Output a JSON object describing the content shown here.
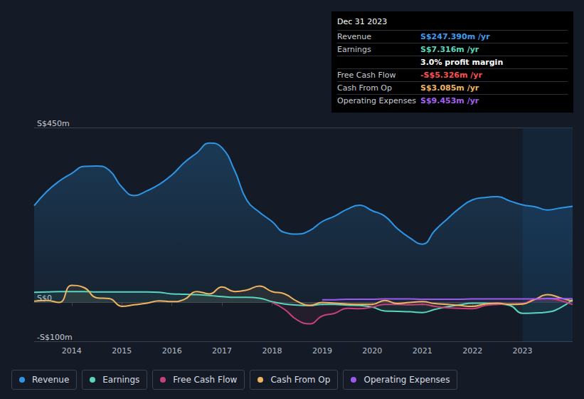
{
  "chart_data": {
    "type": "line",
    "x": [
      2013.25,
      2013.5,
      2013.75,
      2014,
      2014.25,
      2014.5,
      2014.75,
      2015,
      2015.25,
      2015.5,
      2015.75,
      2016,
      2016.25,
      2016.5,
      2016.75,
      2017,
      2017.25,
      2017.5,
      2017.75,
      2018,
      2018.25,
      2018.5,
      2018.75,
      2019,
      2019.25,
      2019.5,
      2019.75,
      2020,
      2020.25,
      2020.5,
      2020.75,
      2021,
      2021.25,
      2021.5,
      2021.75,
      2022,
      2022.25,
      2022.5,
      2022.75,
      2023,
      2023.25,
      2023.5,
      2023.75,
      2024
    ],
    "series": [
      {
        "name": "Revenue",
        "color": "#2d96e6",
        "values": [
          249,
          285,
          312,
          332,
          350,
          351,
          340,
          297,
          275,
          287,
          304,
          328,
          360,
          385,
          410,
          398,
          340,
          262,
          232,
          208,
          180,
          176,
          185,
          208,
          222,
          240,
          250,
          236,
          222,
          190,
          166,
          150,
          185,
          215,
          243,
          264,
          270,
          272,
          261,
          251,
          246,
          238,
          243,
          247.39
        ]
      },
      {
        "name": "Earnings",
        "color": "#58d6bf",
        "values": [
          26,
          27,
          28,
          28,
          28,
          27,
          27,
          27,
          27,
          27,
          26,
          22,
          21,
          20,
          18,
          15,
          13,
          13,
          11,
          2,
          -4,
          -7,
          -8,
          -5,
          -5,
          -7,
          -8,
          -12,
          -22,
          -23,
          -24,
          -26,
          -18,
          -11,
          -6,
          -2,
          -2,
          -4,
          -8,
          -28,
          -27,
          -25,
          -14,
          7.316
        ]
      },
      {
        "name": "Free Cash Flow",
        "color": "#c9407a",
        "values": [
          null,
          null,
          null,
          null,
          null,
          null,
          null,
          null,
          null,
          null,
          null,
          null,
          null,
          null,
          null,
          null,
          null,
          null,
          null,
          0,
          -18,
          -45,
          -55,
          -35,
          -28,
          -15,
          -16,
          -12,
          -5,
          -5,
          -6,
          -5,
          -10,
          -14,
          -15,
          -16,
          -8,
          -5,
          -4,
          -3,
          8,
          10,
          5,
          -5.326
        ]
      },
      {
        "name": "Cash From Op",
        "color": "#efb45f",
        "values": [
          3,
          5,
          0,
          44,
          38,
          12,
          10,
          -10,
          -6,
          -2,
          4,
          2,
          8,
          28,
          22,
          40,
          28,
          32,
          42,
          28,
          22,
          3,
          -8,
          0,
          -2,
          -4,
          -5,
          -5,
          5,
          -3,
          0,
          2,
          -3,
          -5,
          -8,
          -10,
          -4,
          -2,
          -5,
          -4,
          8,
          20,
          12,
          3.085
        ]
      },
      {
        "name": "Operating Expenses",
        "color": "#9b59f0",
        "values": [
          null,
          null,
          null,
          null,
          null,
          null,
          null,
          null,
          null,
          null,
          null,
          null,
          null,
          null,
          null,
          null,
          null,
          null,
          null,
          null,
          null,
          null,
          null,
          7,
          7,
          8,
          8,
          8,
          9,
          9,
          9,
          8,
          8,
          8,
          8,
          9,
          9,
          9,
          9,
          9,
          9,
          10,
          10,
          9.453
        ]
      }
    ],
    "xlim": [
      2013.25,
      2024
    ],
    "xticks": [
      2014,
      2015,
      2016,
      2017,
      2018,
      2019,
      2020,
      2021,
      2022,
      2023
    ],
    "ylim": [
      -100,
      450
    ],
    "yticks": [
      {
        "value": -100,
        "label": "-S$100m"
      },
      {
        "value": 0,
        "label": "S$0"
      },
      {
        "value": 450,
        "label": "S$450m"
      }
    ],
    "grid": true,
    "legend": "bottom",
    "annotations": [
      {
        "title": "Dec 31 2023",
        "rows": [
          {
            "label": "Revenue",
            "value": "S$247.390m /yr",
            "color": "#3d9cf0"
          },
          {
            "label": "Earnings",
            "value": "S$7.316m /yr",
            "color": "#58d6bf"
          },
          {
            "value": "3.0% profit margin",
            "color": "#ffffff"
          },
          {
            "label": "Free Cash Flow",
            "value": "-S$5.326m /yr",
            "color": "#ff4f4f"
          },
          {
            "label": "Cash From Op",
            "value": "S$3.085m /yr",
            "color": "#efb45f"
          },
          {
            "label": "Operating Expenses",
            "value": "S$9.453m /yr",
            "color": "#a65ff5"
          }
        ]
      }
    ]
  }
}
